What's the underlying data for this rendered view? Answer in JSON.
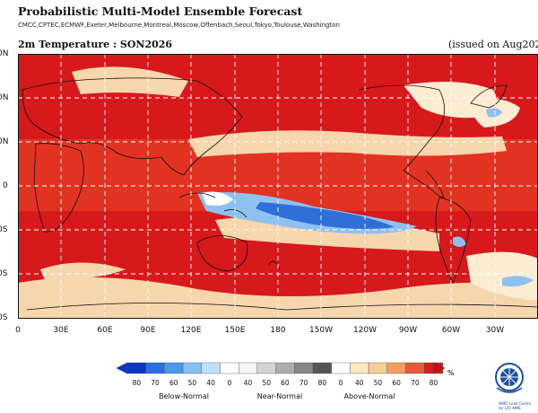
{
  "header": {
    "title": "Probabilistic Multi-Model Ensemble Forecast",
    "contributors": "CMCC,CPTEC,ECMWF,Exeter,Melbourne,Montreal,Moscow,Offenbach,Seoul,Tokyo,Toulouse,Washington",
    "map_title": "2m Temperature : SON2026",
    "issued": "(issued on Aug2026"
  },
  "map": {
    "lat_labels": [
      "0N",
      "0N",
      "0N",
      "0",
      "0S",
      "0S",
      "0S"
    ],
    "lon_labels": [
      "0",
      "30E",
      "60E",
      "90E",
      "120E",
      "150E",
      "180",
      "150W",
      "120W",
      "90W",
      "60W",
      "30W"
    ],
    "colors": {
      "deep_red": "#d7191c",
      "red": "#e63a2a",
      "light_tan": "#f6d6ad",
      "pale": "#fbecd2",
      "blue": "#2f6fd6",
      "light_blue": "#8fc1f0",
      "grid": "#ffffff",
      "coast": "#111111"
    }
  },
  "legend": {
    "numbers": [
      "80",
      "70",
      "60",
      "50",
      "40",
      "0",
      "40",
      "50",
      "60",
      "70",
      "80",
      "0",
      "40",
      "50",
      "60",
      "70",
      "80"
    ],
    "unit": "%",
    "categories": [
      "Below-Normal",
      "Near-Normal",
      "Above-Normal"
    ],
    "colors": [
      "#0a35c4",
      "#2a6fe0",
      "#4a98ec",
      "#84c0f3",
      "#bfe0f9",
      "#ffffff",
      "#f4f4f4",
      "#d4d4d4",
      "#adadad",
      "#868686",
      "#555555",
      "#ffffff",
      "#fbe8c0",
      "#f6cd95",
      "#f2a060",
      "#e8593a",
      "#d31f1a"
    ]
  },
  "logo": {
    "text": "WMO Lead Centre for LRF-MME"
  }
}
